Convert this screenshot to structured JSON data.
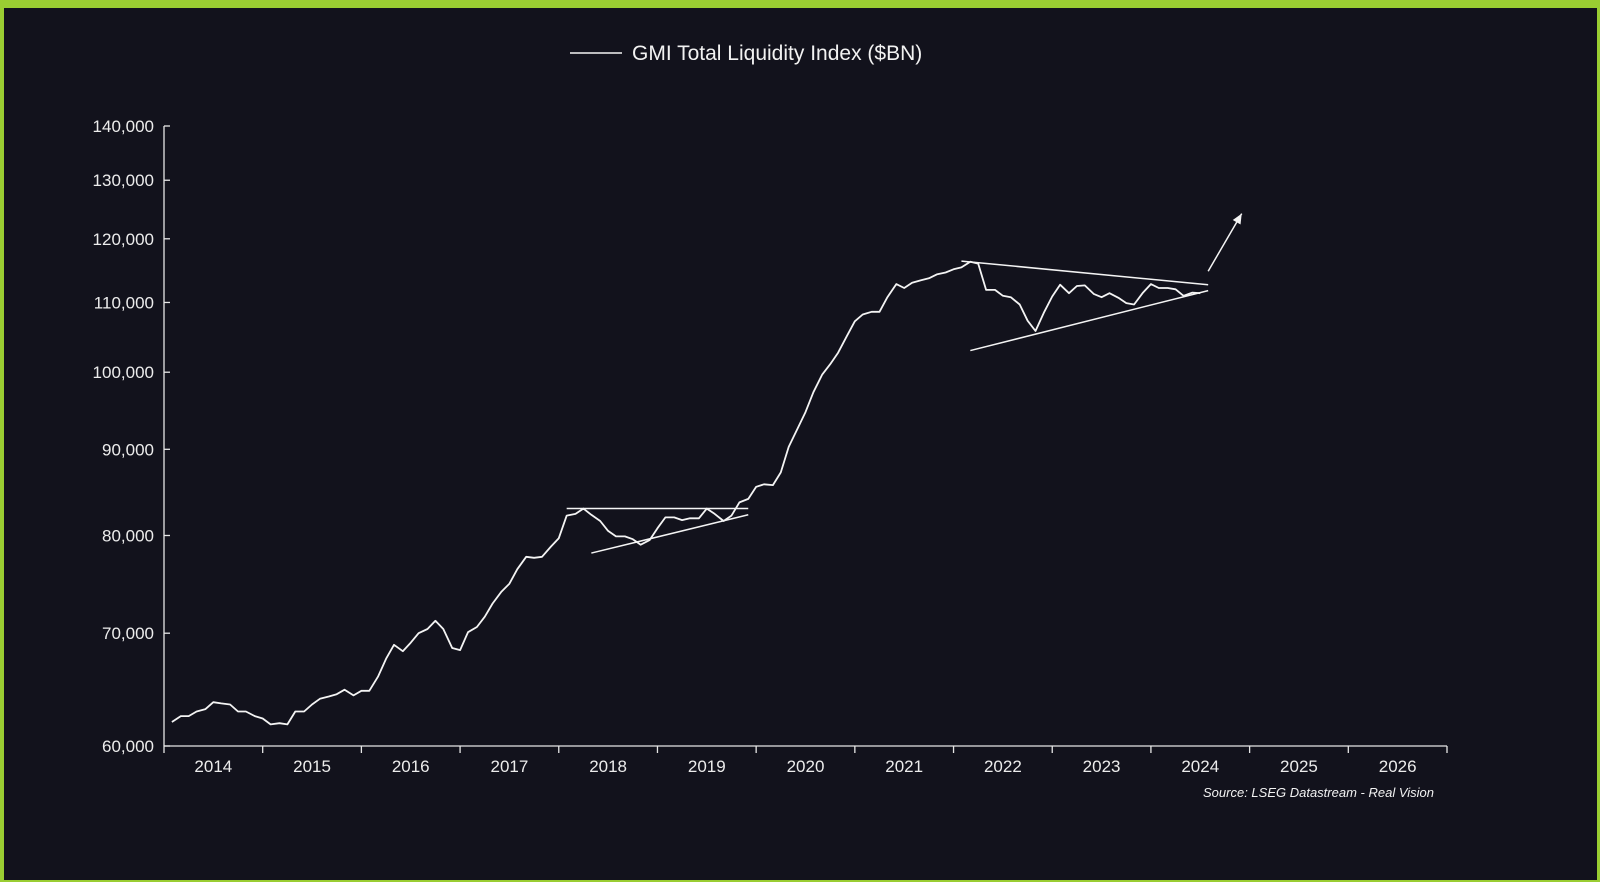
{
  "chart_data": {
    "type": "line",
    "title": "",
    "legend": {
      "entries": [
        "GMI Total Liquidity Index ($BN)"
      ],
      "placement": "top-center"
    },
    "source": "Source: LSEG Datastream - Real Vision",
    "y_scale": "log",
    "ylim": [
      60000,
      140000
    ],
    "y_ticks": [
      60000,
      70000,
      80000,
      90000,
      100000,
      110000,
      120000,
      130000,
      140000
    ],
    "y_tick_labels": [
      "60,000",
      "70,000",
      "80,000",
      "90,000",
      "100,000",
      "110,000",
      "120,000",
      "130,000",
      "140,000"
    ],
    "xlim": [
      2013.5,
      2026.5
    ],
    "x_ticks": [
      2014,
      2015,
      2016,
      2017,
      2018,
      2019,
      2020,
      2021,
      2022,
      2023,
      2024,
      2025,
      2026
    ],
    "x_tick_labels": [
      "2014",
      "2015",
      "2016",
      "2017",
      "2018",
      "2019",
      "2020",
      "2021",
      "2022",
      "2023",
      "2024",
      "2025",
      "2026"
    ],
    "grid": false,
    "series": [
      {
        "name": "GMI Total Liquidity Index ($BN)",
        "color": "#f4f4f4",
        "points": [
          [
            2013.58,
            62000
          ],
          [
            2013.67,
            62500
          ],
          [
            2013.75,
            62500
          ],
          [
            2013.83,
            62900
          ],
          [
            2013.92,
            63100
          ],
          [
            2014.0,
            63700
          ],
          [
            2014.08,
            63600
          ],
          [
            2014.17,
            63500
          ],
          [
            2014.25,
            62900
          ],
          [
            2014.33,
            62900
          ],
          [
            2014.42,
            62500
          ],
          [
            2014.5,
            62300
          ],
          [
            2014.58,
            61800
          ],
          [
            2014.67,
            61900
          ],
          [
            2014.75,
            61800
          ],
          [
            2014.83,
            62900
          ],
          [
            2014.92,
            62900
          ],
          [
            2015.0,
            63500
          ],
          [
            2015.08,
            64000
          ],
          [
            2015.17,
            64200
          ],
          [
            2015.25,
            64400
          ],
          [
            2015.33,
            64800
          ],
          [
            2015.42,
            64300
          ],
          [
            2015.5,
            64700
          ],
          [
            2015.58,
            64700
          ],
          [
            2015.67,
            66000
          ],
          [
            2015.75,
            67600
          ],
          [
            2015.83,
            68900
          ],
          [
            2015.92,
            68300
          ],
          [
            2016.0,
            69100
          ],
          [
            2016.08,
            70000
          ],
          [
            2016.17,
            70400
          ],
          [
            2016.25,
            71200
          ],
          [
            2016.33,
            70400
          ],
          [
            2016.42,
            68600
          ],
          [
            2016.5,
            68400
          ],
          [
            2016.58,
            70100
          ],
          [
            2016.67,
            70600
          ],
          [
            2016.75,
            71600
          ],
          [
            2016.83,
            72900
          ],
          [
            2016.92,
            74100
          ],
          [
            2017.0,
            74900
          ],
          [
            2017.08,
            76400
          ],
          [
            2017.17,
            77700
          ],
          [
            2017.25,
            77600
          ],
          [
            2017.33,
            77700
          ],
          [
            2017.42,
            78800
          ],
          [
            2017.5,
            79700
          ],
          [
            2017.58,
            82200
          ],
          [
            2017.67,
            82400
          ],
          [
            2017.75,
            83000
          ],
          [
            2017.83,
            82300
          ],
          [
            2017.92,
            81600
          ],
          [
            2018.0,
            80500
          ],
          [
            2018.08,
            79900
          ],
          [
            2018.17,
            79900
          ],
          [
            2018.25,
            79600
          ],
          [
            2018.33,
            79000
          ],
          [
            2018.42,
            79500
          ],
          [
            2018.5,
            80800
          ],
          [
            2018.58,
            82000
          ],
          [
            2018.67,
            82000
          ],
          [
            2018.75,
            81700
          ],
          [
            2018.83,
            81900
          ],
          [
            2018.92,
            81900
          ],
          [
            2019.0,
            83000
          ],
          [
            2019.08,
            82400
          ],
          [
            2019.17,
            81600
          ],
          [
            2019.25,
            82200
          ],
          [
            2019.33,
            83700
          ],
          [
            2019.42,
            84100
          ],
          [
            2019.5,
            85500
          ],
          [
            2019.58,
            85800
          ],
          [
            2019.67,
            85700
          ],
          [
            2019.75,
            87200
          ],
          [
            2019.83,
            90300
          ],
          [
            2019.92,
            92600
          ],
          [
            2020.0,
            94700
          ],
          [
            2020.08,
            97300
          ],
          [
            2020.17,
            99700
          ],
          [
            2020.25,
            101100
          ],
          [
            2020.33,
            102700
          ],
          [
            2020.42,
            105100
          ],
          [
            2020.5,
            107200
          ],
          [
            2020.58,
            108200
          ],
          [
            2020.67,
            108600
          ],
          [
            2020.75,
            108600
          ],
          [
            2020.83,
            110800
          ],
          [
            2020.92,
            112800
          ],
          [
            2021.0,
            112200
          ],
          [
            2021.08,
            113000
          ],
          [
            2021.17,
            113400
          ],
          [
            2021.25,
            113700
          ],
          [
            2021.33,
            114300
          ],
          [
            2021.42,
            114600
          ],
          [
            2021.5,
            115100
          ],
          [
            2021.58,
            115400
          ],
          [
            2021.67,
            116300
          ],
          [
            2021.75,
            116000
          ],
          [
            2021.83,
            111900
          ],
          [
            2021.92,
            111900
          ],
          [
            2022.0,
            111000
          ],
          [
            2022.08,
            110800
          ],
          [
            2022.17,
            109700
          ],
          [
            2022.25,
            107300
          ],
          [
            2022.33,
            105800
          ],
          [
            2022.42,
            108600
          ],
          [
            2022.5,
            110900
          ],
          [
            2022.58,
            112700
          ],
          [
            2022.67,
            111400
          ],
          [
            2022.75,
            112500
          ],
          [
            2022.83,
            112600
          ],
          [
            2022.92,
            111300
          ],
          [
            2023.0,
            110800
          ],
          [
            2023.08,
            111400
          ],
          [
            2023.17,
            110700
          ],
          [
            2023.25,
            109900
          ],
          [
            2023.33,
            109700
          ],
          [
            2023.42,
            111500
          ],
          [
            2023.5,
            112800
          ],
          [
            2023.58,
            112200
          ],
          [
            2023.67,
            112200
          ],
          [
            2023.75,
            112000
          ],
          [
            2023.83,
            111000
          ],
          [
            2023.92,
            111500
          ],
          [
            2024.0,
            111400
          ]
        ]
      }
    ],
    "annotations": [
      {
        "label": "resistance-2018",
        "x1": 2017.58,
        "y1": 83000,
        "x2": 2019.42,
        "y2": 83000
      },
      {
        "label": "support-2018",
        "x1": 2017.83,
        "y1": 78100,
        "x2": 2019.42,
        "y2": 82300
      },
      {
        "label": "resistance-2022",
        "x1": 2021.58,
        "y1": 116400,
        "x2": 2024.08,
        "y2": 112700
      },
      {
        "label": "support-2022",
        "x1": 2021.67,
        "y1": 103000,
        "x2": 2024.08,
        "y2": 111800
      },
      {
        "label": "breakout-arrow",
        "x1": 2024.08,
        "y1": 114800,
        "x2": 2024.42,
        "y2": 124200
      }
    ]
  }
}
